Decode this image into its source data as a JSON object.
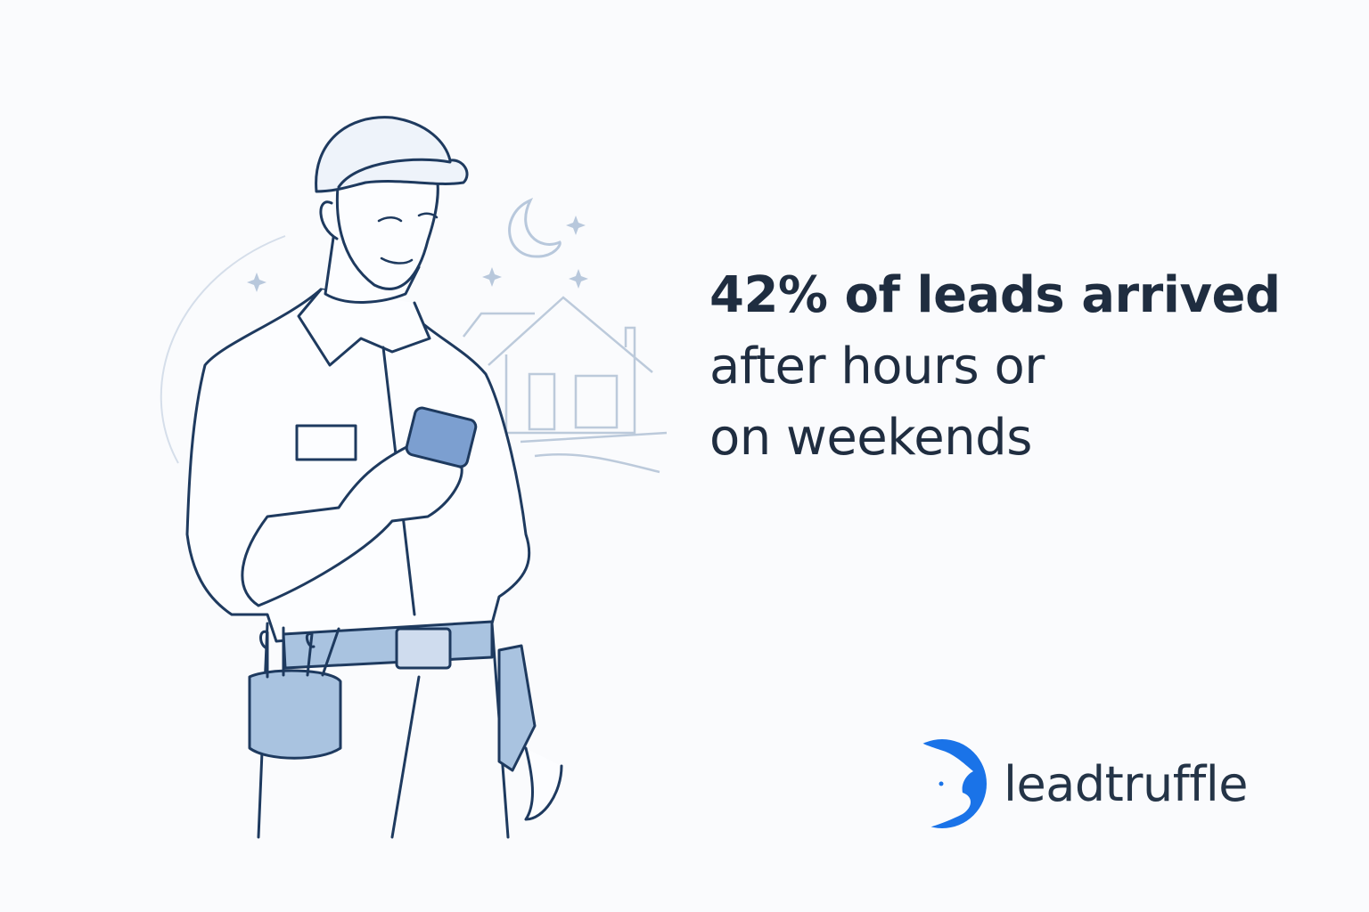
{
  "headline": {
    "line1": "42% of leads arrived",
    "line2": "after hours or",
    "line3": "on weekends"
  },
  "brand": {
    "name": "leadtruffle",
    "color": "#1a73e8"
  },
  "colors": {
    "text": "#1f2d40",
    "line_art": "#1e3a5f",
    "accent_fill": "#a9c3e0"
  }
}
